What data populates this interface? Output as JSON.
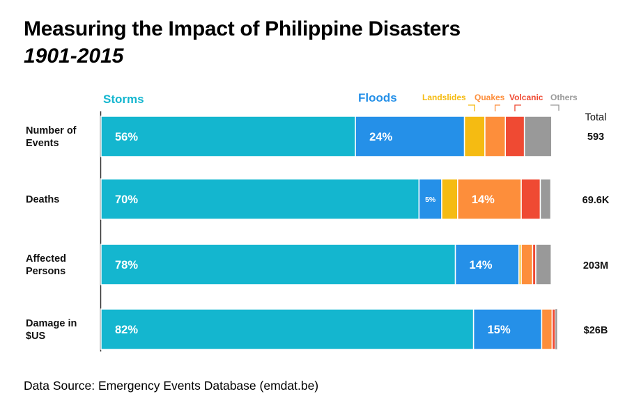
{
  "title": "Measuring the Impact of Philippine Disasters",
  "subtitle": "1901-2015",
  "source": "Data Source: Emergency Events Database (emdat.be)",
  "total_header": "Total",
  "chart_data": {
    "type": "bar",
    "stacked": "percent",
    "orientation": "horizontal",
    "title": "Measuring the Impact of Philippine Disasters",
    "subtitle": "1901-2015",
    "categories": [
      "Number of Events",
      "Deaths",
      "Affected Persons",
      "Damage in $US"
    ],
    "category_label_lines": [
      [
        "Number of",
        "Events"
      ],
      [
        "Deaths"
      ],
      [
        "Affected",
        "Persons"
      ],
      [
        "Damage in",
        "$US"
      ]
    ],
    "totals": [
      "593",
      "69.6K",
      "203M",
      "$26B"
    ],
    "xlim": [
      0,
      100
    ],
    "grid": false,
    "legend": "top, inline labels above first bar",
    "series": [
      {
        "name": "Storms",
        "color": "#14B6CF",
        "values": [
          56,
          70,
          78,
          82
        ],
        "labels": [
          "56%",
          "70%",
          "78%",
          "82%"
        ]
      },
      {
        "name": "Floods",
        "color": "#2590E8",
        "values": [
          24,
          5,
          14,
          15
        ],
        "labels": [
          "24%",
          "5%",
          "14%",
          "15%"
        ]
      },
      {
        "name": "Landslides",
        "color": "#F5BB12",
        "values": [
          4.5,
          3.5,
          0.5,
          0
        ],
        "labels": [
          "",
          "",
          "",
          ""
        ]
      },
      {
        "name": "Quakes",
        "color": "#FD8E3B",
        "values": [
          4.5,
          14,
          2.5,
          2.3
        ],
        "labels": [
          "",
          "14%",
          "",
          ""
        ]
      },
      {
        "name": "Volcanic",
        "color": "#EF4A33",
        "values": [
          4.2,
          4.2,
          0.7,
          0.7
        ],
        "labels": [
          "",
          "",
          "",
          ""
        ]
      },
      {
        "name": "Others",
        "color": "#999999",
        "values": [
          6,
          2.3,
          3.4,
          0.4
        ],
        "labels": [
          "",
          "",
          "",
          ""
        ]
      }
    ]
  }
}
